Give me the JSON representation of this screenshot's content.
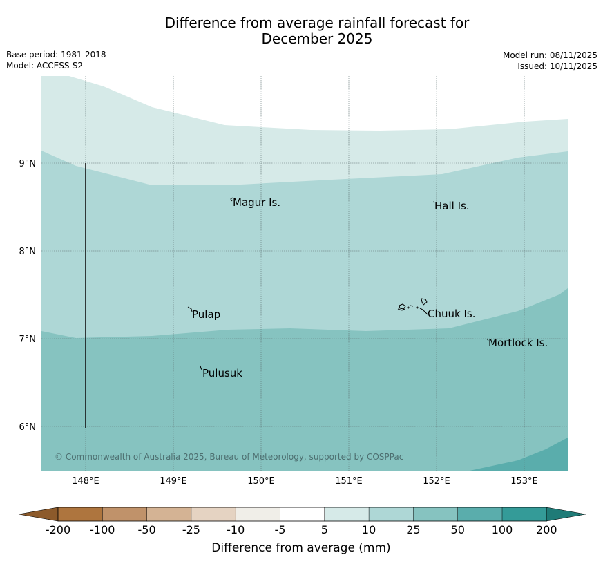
{
  "title_line1": "Difference from average rainfall forecast for",
  "title_line2": "December 2025",
  "base_period": "Base period: 1981-2018",
  "model": "Model: ACCESS-S2",
  "model_run": "Model run: 08/11/2025",
  "issued": "Issued: 10/11/2025",
  "lon_ticks": [
    "148°E",
    "149°E",
    "150°E",
    "151°E",
    "152°E",
    "153°E"
  ],
  "lat_ticks": [
    "9°N",
    "8°N",
    "7°N",
    "6°N"
  ],
  "places": {
    "magur": "Magur Is.",
    "hall": "Hall Is.",
    "pulap": "Pulap",
    "chuuk": "Chuuk Is.",
    "mortlock": "Mortlock Is.",
    "pulusuk": "Pulusuk"
  },
  "copyright": "© Commonwealth of Australia 2025, Bureau of Meteorology, supported by COSPPac",
  "legend": {
    "title": "Difference from average (mm)",
    "ticks": [
      "-200",
      "-100",
      "-50",
      "-25",
      "-10",
      "-5",
      "5",
      "10",
      "25",
      "50",
      "100",
      "200"
    ],
    "colors": [
      "#ae753e",
      "#c0926a",
      "#d4b394",
      "#e5d3c2",
      "#f0eee8",
      "#ffffff",
      "#d6eae8",
      "#aed7d6",
      "#86c3c0",
      "#5aadac",
      "#349b98"
    ],
    "under_color": "#8c5a2b",
    "over_color": "#1f7b77"
  },
  "map_colors": {
    "band_5_10": "#d6eae8",
    "band_10_25": "#aed7d6",
    "band_25_50": "#86c3c0",
    "band_50_100": "#5aadac"
  }
}
